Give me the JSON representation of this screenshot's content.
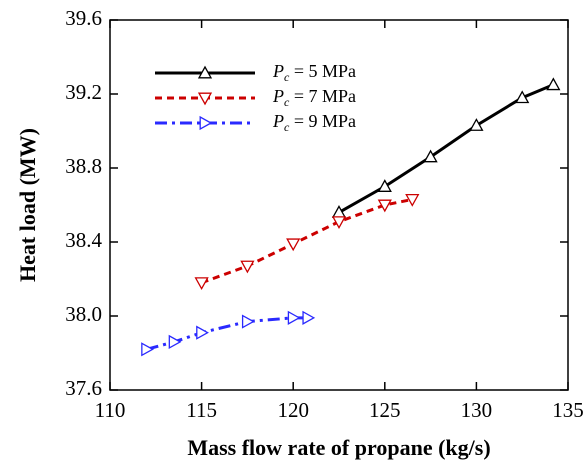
{
  "chart_data": {
    "type": "line",
    "x_label": "Mass flow rate of propane (kg/s)",
    "y_label": "Heat load (MW)",
    "xlim": [
      110,
      135
    ],
    "xticks": [
      110,
      115,
      120,
      125,
      130,
      135
    ],
    "ylim": [
      37.6,
      39.6
    ],
    "yticks": [
      {
        "value": 37.6,
        "label": "37.6"
      },
      {
        "value": 38.0,
        "label": "38.0"
      },
      {
        "value": 38.4,
        "label": "38.4"
      },
      {
        "value": 38.8,
        "label": "38.8"
      },
      {
        "value": 39.2,
        "label": "39.2"
      },
      {
        "value": 39.6,
        "label": "39.6"
      }
    ],
    "legend": "upper-left",
    "series": [
      {
        "name": "Pc = 5 MPa",
        "color": "#000000",
        "marker": "triangle-up",
        "dash": "solid",
        "x": [
          122.5,
          125,
          127.5,
          130,
          132.5,
          134.2
        ],
        "values": [
          38.56,
          38.7,
          38.86,
          39.03,
          39.18,
          39.25
        ]
      },
      {
        "name": "Pc = 7 MPa",
        "color": "#cc0000",
        "marker": "triangle-down",
        "dash": "dotted",
        "x": [
          115,
          117.5,
          120,
          122.5,
          125,
          126.5
        ],
        "values": [
          38.18,
          38.27,
          38.39,
          38.51,
          38.6,
          38.63
        ]
      },
      {
        "name": "Pc = 9 MPa",
        "color": "#2a2aff",
        "marker": "triangle-right",
        "dash": "dashdot",
        "x": [
          112,
          113.5,
          115,
          117.5,
          120,
          120.8
        ],
        "values": [
          37.82,
          37.86,
          37.91,
          37.97,
          37.99,
          37.99
        ]
      }
    ]
  }
}
